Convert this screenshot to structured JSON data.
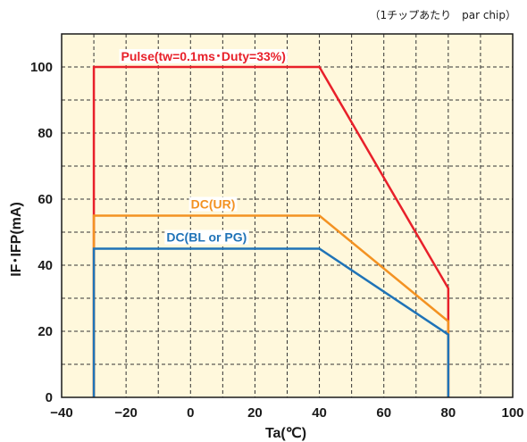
{
  "chart_data": {
    "type": "line",
    "note": "（1チップあたり　par chip）",
    "xlabel": "Ta(℃)",
    "ylabel": "IF･IFP(mA)",
    "xlim": [
      -40,
      100
    ],
    "ylim": [
      0,
      110
    ],
    "x_ticks": [
      -40,
      -20,
      0,
      20,
      40,
      60,
      80,
      100
    ],
    "y_ticks": [
      0,
      20,
      40,
      60,
      80,
      100
    ],
    "grid": true,
    "plot_background": "#fff8dc",
    "series": [
      {
        "name": "Pulse(tw=0.1ms･Duty=33%)",
        "color": "#e8202a",
        "points": [
          [
            -30,
            0
          ],
          [
            -30,
            100
          ],
          [
            40,
            100
          ],
          [
            80,
            33
          ],
          [
            80,
            0
          ]
        ]
      },
      {
        "name": "DC(UR)",
        "color": "#f39222",
        "points": [
          [
            -30,
            0
          ],
          [
            -30,
            55
          ],
          [
            40,
            55
          ],
          [
            80,
            23
          ],
          [
            80,
            0
          ]
        ]
      },
      {
        "name": "DC(BL or PG)",
        "color": "#1f73b7",
        "points": [
          [
            -30,
            0
          ],
          [
            -30,
            45
          ],
          [
            40,
            45
          ],
          [
            80,
            19
          ],
          [
            80,
            0
          ]
        ]
      }
    ]
  }
}
